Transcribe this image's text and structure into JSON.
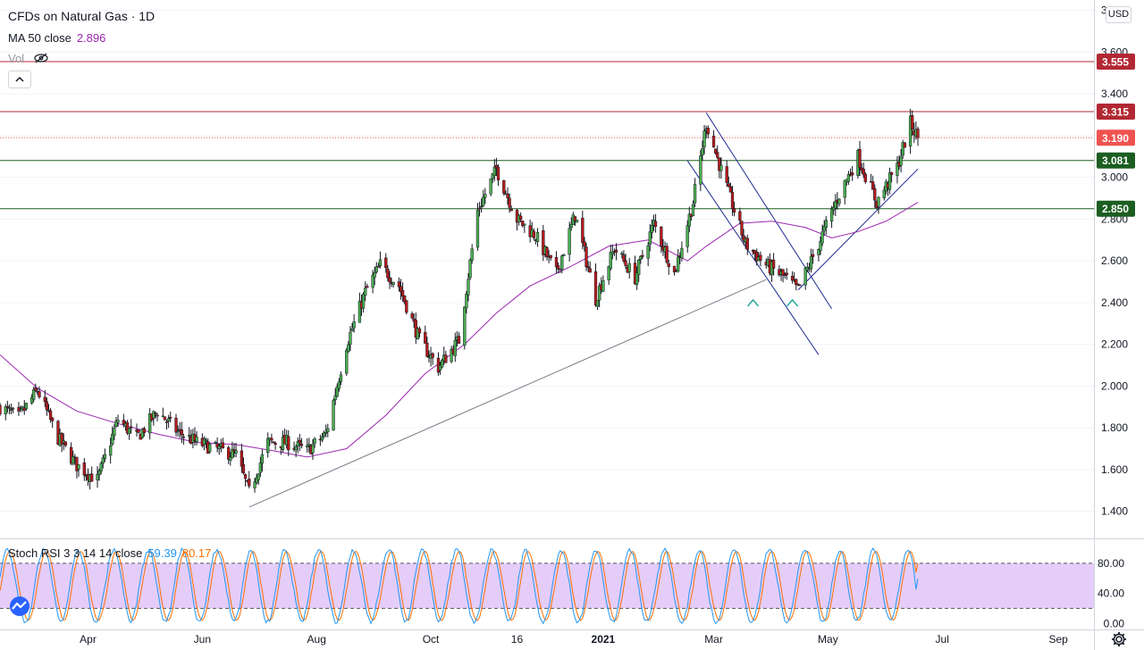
{
  "legend": {
    "title": "CFDs on Natural Gas · 1D",
    "ma_label": "MA 50 close",
    "ma_value": "2.896",
    "vol_label": "Vol",
    "stoch_label": "Stoch RSI 3 3 14 14 close",
    "stoch_k": "59.39",
    "stoch_d": "80.17"
  },
  "currency": "USD",
  "colors": {
    "up": "#26a69a",
    "down": "#ef5350",
    "candle_up_body": "#4caf50",
    "candle_down_body": "#b71c1c",
    "ma": "#9c27b0",
    "resistance": "#b22833",
    "support": "#1b5e20",
    "trend_blue": "#1f2c8f",
    "trend_gray": "#787b86",
    "stoch_k": "#2196f3",
    "stoch_d": "#ff6d00",
    "stoch_band": "#e1c4f8",
    "marker": "#26a69a"
  },
  "chart_data": {
    "type": "candlestick",
    "symbol": "CFDs on Natural Gas",
    "interval": "1D",
    "x_labels": [
      "Apr",
      "Jun",
      "Aug",
      "Oct",
      "16",
      "2021",
      "Mar",
      "May",
      "Jul",
      "Sep"
    ],
    "y_ticks": [
      1.4,
      1.6,
      1.8,
      2.0,
      2.2,
      2.4,
      2.6,
      2.8,
      3.0,
      3.2,
      3.4,
      3.6,
      3.8
    ],
    "ylim": [
      1.27,
      3.85
    ],
    "price_series_points": [
      [
        "2020-02-14",
        1.9
      ],
      [
        "2020-02-24",
        1.85
      ],
      [
        "2020-03-05",
        1.98
      ],
      [
        "2020-03-16",
        1.75
      ],
      [
        "2020-03-26",
        1.62
      ],
      [
        "2020-04-06",
        1.55
      ],
      [
        "2020-04-17",
        1.84
      ],
      [
        "2020-04-27",
        1.75
      ],
      [
        "2020-05-08",
        1.88
      ],
      [
        "2020-05-19",
        1.78
      ],
      [
        "2020-05-29",
        1.73
      ],
      [
        "2020-06-08",
        1.7
      ],
      [
        "2020-06-19",
        1.67
      ],
      [
        "2020-06-26",
        1.49
      ],
      [
        "2020-07-06",
        1.73
      ],
      [
        "2020-07-16",
        1.73
      ],
      [
        "2020-07-27",
        1.69
      ],
      [
        "2020-08-06",
        1.77
      ],
      [
        "2020-08-17",
        2.2
      ],
      [
        "2020-08-27",
        2.45
      ],
      [
        "2020-09-04",
        2.58
      ],
      [
        "2020-09-14",
        2.48
      ],
      [
        "2020-09-25",
        2.22
      ],
      [
        "2020-10-05",
        2.09
      ],
      [
        "2020-10-16",
        2.22
      ],
      [
        "2020-10-26",
        2.84
      ],
      [
        "2020-11-05",
        3.04
      ],
      [
        "2020-11-16",
        2.8
      ],
      [
        "2020-11-26",
        2.72
      ],
      [
        "2020-12-07",
        2.54
      ],
      [
        "2020-12-17",
        2.82
      ],
      [
        "2020-12-28",
        2.42
      ],
      [
        "2021-01-07",
        2.66
      ],
      [
        "2021-01-18",
        2.52
      ],
      [
        "2021-01-28",
        2.78
      ],
      [
        "2021-02-08",
        2.54
      ],
      [
        "2021-02-18",
        2.88
      ],
      [
        "2021-02-25",
        3.26
      ],
      [
        "2021-03-08",
        2.95
      ],
      [
        "2021-03-18",
        2.68
      ],
      [
        "2021-03-29",
        2.58
      ],
      [
        "2021-04-08",
        2.52
      ],
      [
        "2021-04-15",
        2.46
      ],
      [
        "2021-04-26",
        2.68
      ],
      [
        "2021-05-06",
        2.9
      ],
      [
        "2021-05-17",
        3.1
      ],
      [
        "2021-05-27",
        2.88
      ],
      [
        "2021-06-07",
        3.05
      ],
      [
        "2021-06-14",
        3.26
      ],
      [
        "2021-06-18",
        3.19
      ]
    ],
    "ma50_points": [
      [
        "2020-02-14",
        2.15
      ],
      [
        "2020-03-05",
        1.99
      ],
      [
        "2020-03-26",
        1.88
      ],
      [
        "2020-04-17",
        1.82
      ],
      [
        "2020-05-08",
        1.77
      ],
      [
        "2020-05-29",
        1.73
      ],
      [
        "2020-06-19",
        1.72
      ],
      [
        "2020-07-09",
        1.69
      ],
      [
        "2020-07-27",
        1.66
      ],
      [
        "2020-08-17",
        1.7
      ],
      [
        "2020-09-07",
        1.86
      ],
      [
        "2020-09-28",
        2.06
      ],
      [
        "2020-10-19",
        2.2
      ],
      [
        "2020-11-05",
        2.35
      ],
      [
        "2020-11-23",
        2.48
      ],
      [
        "2020-12-14",
        2.57
      ],
      [
        "2021-01-04",
        2.67
      ],
      [
        "2021-01-25",
        2.7
      ],
      [
        "2021-02-15",
        2.6
      ],
      [
        "2021-02-25",
        2.67
      ],
      [
        "2021-03-15",
        2.78
      ],
      [
        "2021-04-01",
        2.79
      ],
      [
        "2021-04-19",
        2.76
      ],
      [
        "2021-05-03",
        2.71
      ],
      [
        "2021-05-17",
        2.74
      ],
      [
        "2021-06-01",
        2.79
      ],
      [
        "2021-06-18",
        2.88
      ]
    ],
    "horizontal_levels": [
      {
        "value": 3.555,
        "label": "3.555",
        "kind": "resistance"
      },
      {
        "value": 3.315,
        "label": "3.315",
        "kind": "resistance"
      },
      {
        "value": 3.081,
        "label": "3.081",
        "kind": "support"
      },
      {
        "value": 2.85,
        "label": "2.850",
        "kind": "support"
      }
    ],
    "last_price": {
      "value": 3.19,
      "label": "3.190"
    },
    "trendlines": [
      {
        "from": [
          "2020-06-26",
          1.42
        ],
        "to": [
          "2021-03-29",
          2.51
        ],
        "color": "trend_gray"
      },
      {
        "from": [
          "2021-02-25",
          3.31
        ],
        "to": [
          "2021-05-03",
          2.37
        ],
        "color": "trend_blue"
      },
      {
        "from": [
          "2021-02-15",
          3.08
        ],
        "to": [
          "2021-04-26",
          2.15
        ],
        "color": "trend_blue"
      },
      {
        "from": [
          "2021-04-15",
          2.46
        ],
        "to": [
          "2021-06-18",
          3.04
        ],
        "color": "trend_blue"
      }
    ],
    "markers": [
      {
        "date": "2021-03-22",
        "price": 2.4,
        "shape": "caret-up"
      },
      {
        "date": "2021-04-12",
        "price": 2.4,
        "shape": "caret-up"
      }
    ],
    "stoch_rsi": {
      "y_ticks": [
        0,
        40,
        80
      ],
      "y_tick_labels": [
        "0.00",
        "40.00",
        "80.00"
      ],
      "band": [
        20,
        80
      ],
      "ylim": [
        -8,
        112
      ],
      "k_last": 59.39,
      "d_last": 80.17
    }
  }
}
